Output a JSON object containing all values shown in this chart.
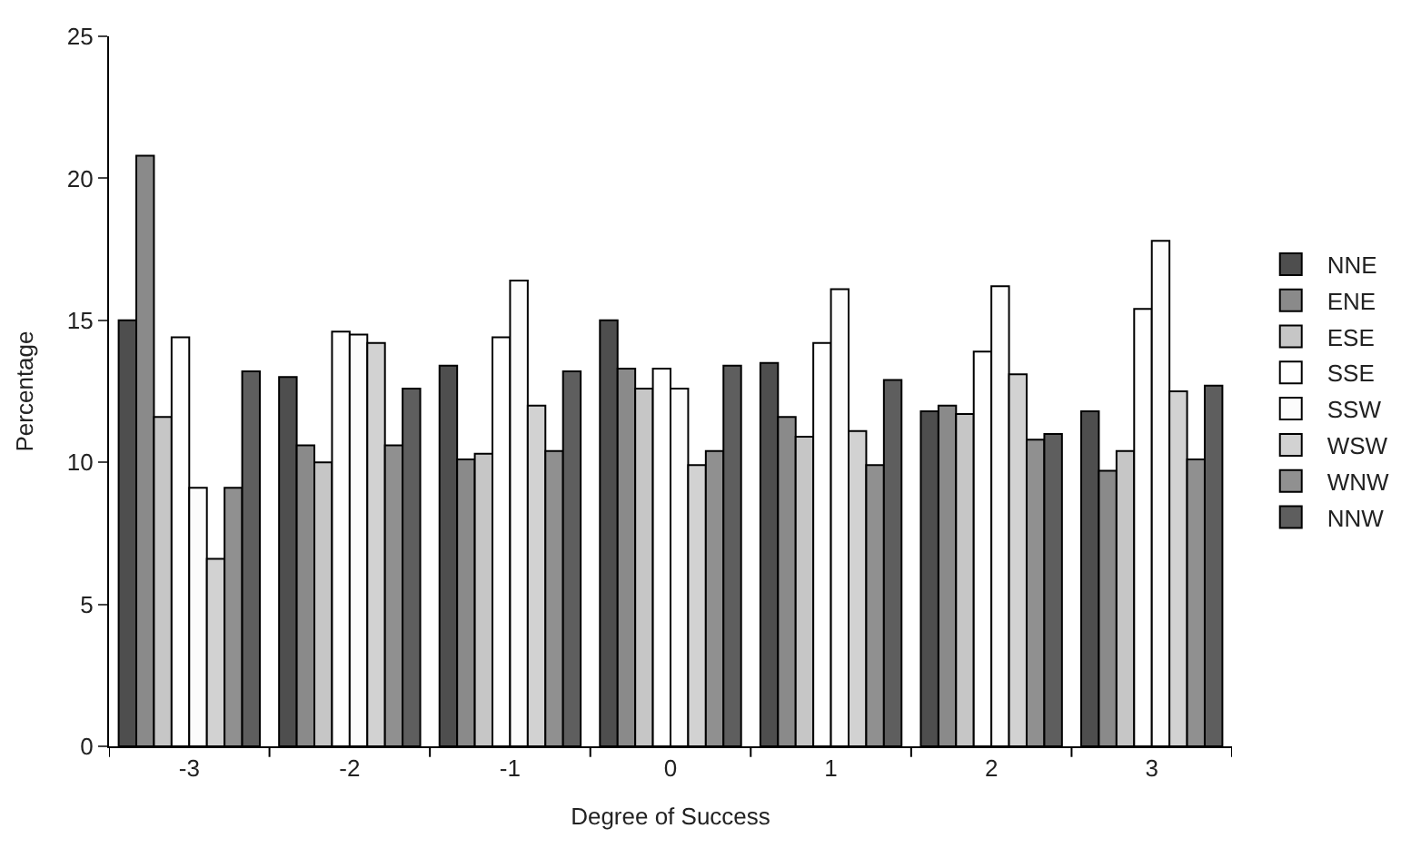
{
  "chart_data": {
    "type": "bar",
    "xlabel": "Degree of Success",
    "ylabel": "Percentage",
    "categories": [
      "-3",
      "-2",
      "-1",
      "0",
      "1",
      "2",
      "3"
    ],
    "series": [
      {
        "name": "NNE",
        "color": "#4e4e4e",
        "values": [
          15.0,
          13.0,
          13.4,
          15.0,
          13.5,
          11.8,
          11.8
        ]
      },
      {
        "name": "ENE",
        "color": "#8a8a8a",
        "values": [
          20.8,
          10.6,
          10.1,
          13.3,
          11.6,
          12.0,
          9.7
        ]
      },
      {
        "name": "ESE",
        "color": "#c6c6c6",
        "values": [
          11.6,
          10.0,
          10.3,
          12.6,
          10.9,
          11.7,
          10.4
        ]
      },
      {
        "name": "SSE",
        "color": "#ffffff",
        "values": [
          14.4,
          14.6,
          14.4,
          13.3,
          14.2,
          13.9,
          15.4
        ]
      },
      {
        "name": "SSW",
        "color": "#fcfcfc",
        "values": [
          9.1,
          14.5,
          16.4,
          12.6,
          16.1,
          16.2,
          17.8
        ]
      },
      {
        "name": "WSW",
        "color": "#d2d2d2",
        "values": [
          6.6,
          14.2,
          12.0,
          9.9,
          11.1,
          13.1,
          12.5
        ]
      },
      {
        "name": "WNW",
        "color": "#909090",
        "values": [
          9.1,
          10.6,
          10.4,
          10.4,
          9.9,
          10.8,
          10.1
        ]
      },
      {
        "name": "NNW",
        "color": "#5e5e5e",
        "values": [
          13.2,
          12.6,
          13.2,
          13.4,
          12.9,
          11.0,
          12.7
        ]
      }
    ],
    "ylim": [
      0,
      25
    ],
    "yticks": [
      0,
      5,
      10,
      15,
      20,
      25
    ],
    "legend": "right"
  }
}
